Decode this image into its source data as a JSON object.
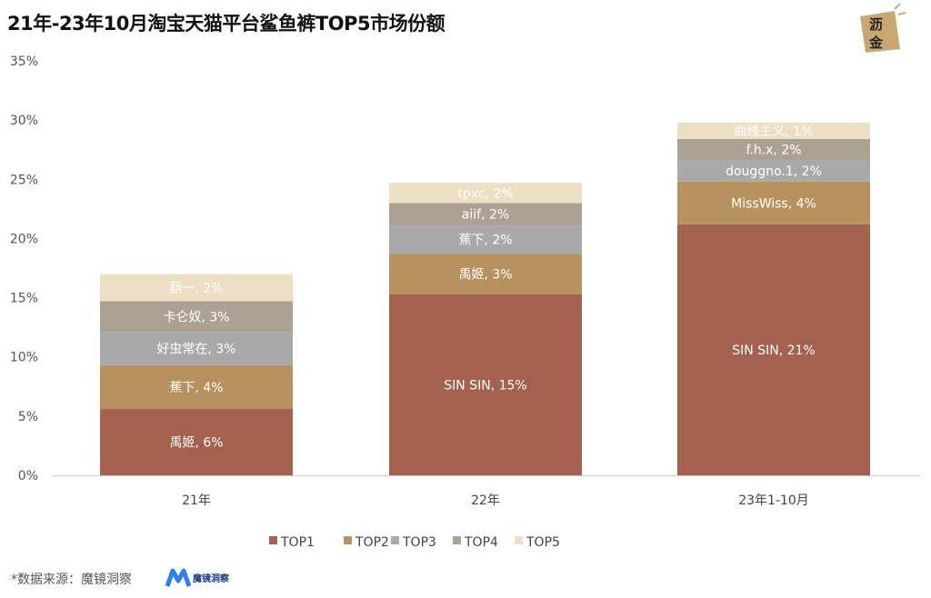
{
  "title": "21年-23年10月淘宝天猫平台鲨鱼裤TOP5市场份额",
  "source": "*数据来源：魔镜洞察",
  "source_logo_text": "魔镜洞察",
  "corner_logo_text": "沥金",
  "chart_data": {
    "type": "bar",
    "stacked": true,
    "title": "21年-23年10月淘宝天猫平台鲨鱼裤TOP5市场份额",
    "xlabel": "",
    "ylabel": "",
    "ylim": [
      0,
      35
    ],
    "yticks": [
      "0%",
      "5%",
      "10%",
      "15%",
      "20%",
      "25%",
      "30%",
      "35%"
    ],
    "grid": false,
    "legend": "bottom",
    "categories": [
      "21年",
      "22年",
      "23年1-10月"
    ],
    "series": [
      {
        "name": "TOP1",
        "color": "#a5614f",
        "values": [
          5.6,
          15.3,
          21.2
        ],
        "labels": [
          "禹姬, 6%",
          "SIN SIN, 15%",
          "SIN SIN, 21%"
        ]
      },
      {
        "name": "TOP2",
        "color": "#b8925e",
        "values": [
          3.7,
          3.4,
          3.6
        ],
        "labels": [
          "蕉下, 4%",
          "禹姬, 3%",
          "MissWiss, 4%"
        ]
      },
      {
        "name": "TOP3",
        "color": "#a9a9a9",
        "values": [
          2.8,
          2.4,
          1.8
        ],
        "labels": [
          "好虫常在, 3%",
          "蕉下, 2%",
          "douggno.1, 2%"
        ]
      },
      {
        "name": "TOP4",
        "color": "#aca294",
        "values": [
          2.6,
          1.9,
          1.8
        ],
        "labels": [
          "卡仑奴, 3%",
          "aiif, 2%",
          "f.h.x, 2%"
        ]
      },
      {
        "name": "TOP5",
        "color": "#eedfc4",
        "values": [
          2.3,
          1.7,
          1.4
        ],
        "labels": [
          "蕻一, 2%",
          "tpxc, 2%",
          "曲线主义, 1%"
        ]
      }
    ]
  }
}
